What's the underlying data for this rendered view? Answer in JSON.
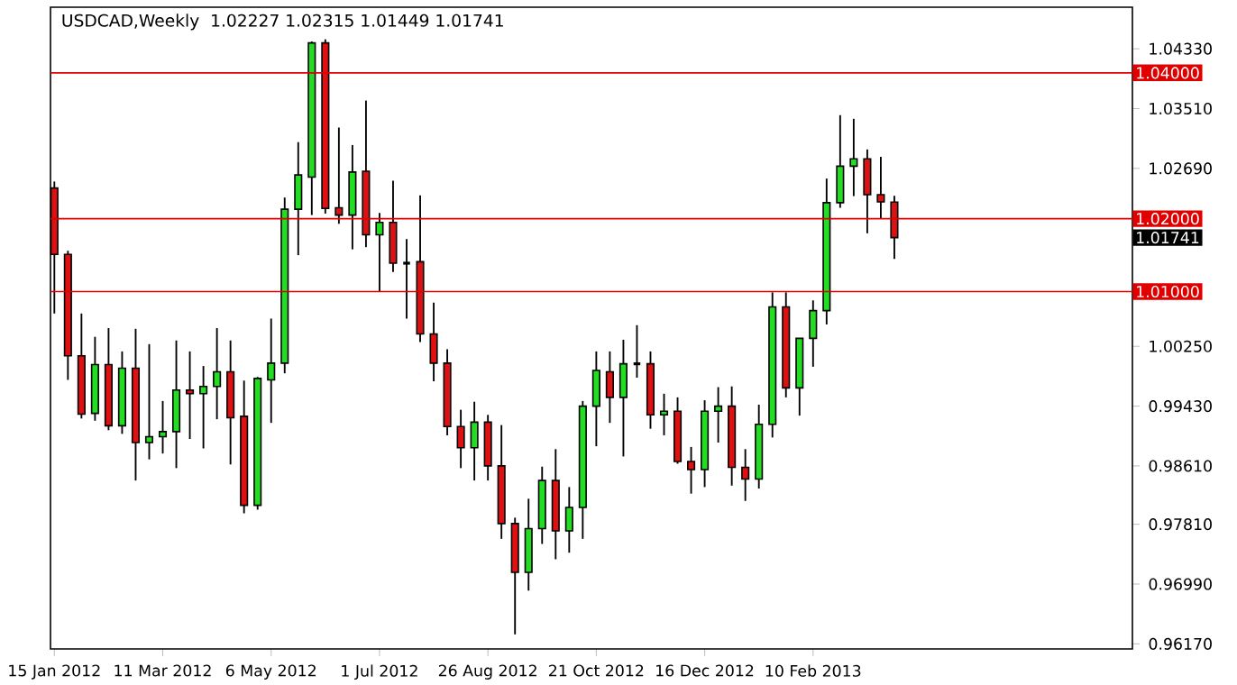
{
  "chart_data": {
    "type": "candlestick",
    "title": "USDCAD,Weekly",
    "subtitle": "1.02227 1.02315 1.01449 1.01741",
    "x": [
      "2012-01-15",
      "2012-01-22",
      "2012-01-29",
      "2012-02-05",
      "2012-02-12",
      "2012-02-19",
      "2012-02-26",
      "2012-03-04",
      "2012-03-11",
      "2012-03-18",
      "2012-03-25",
      "2012-04-01",
      "2012-04-08",
      "2012-04-15",
      "2012-04-22",
      "2012-04-29",
      "2012-05-06",
      "2012-05-13",
      "2012-05-20",
      "2012-05-27",
      "2012-06-03",
      "2012-06-10",
      "2012-06-17",
      "2012-06-24",
      "2012-07-01",
      "2012-07-08",
      "2012-07-15",
      "2012-07-22",
      "2012-07-29",
      "2012-08-05",
      "2012-08-12",
      "2012-08-19",
      "2012-08-26",
      "2012-09-02",
      "2012-09-09",
      "2012-09-16",
      "2012-09-23",
      "2012-09-30",
      "2012-10-07",
      "2012-10-14",
      "2012-10-21",
      "2012-10-28",
      "2012-11-04",
      "2012-11-11",
      "2012-11-18",
      "2012-11-25",
      "2012-12-02",
      "2012-12-09",
      "2012-12-16",
      "2012-12-23",
      "2012-12-30",
      "2013-01-06",
      "2013-01-13",
      "2013-01-20",
      "2013-01-27",
      "2013-02-03",
      "2013-02-10",
      "2013-02-17",
      "2013-02-24",
      "2013-03-03",
      "2013-03-10",
      "2013-03-17",
      "2013-03-24"
    ],
    "ohlc": [
      [
        1.0242,
        1.0251,
        1.007,
        1.0151
      ],
      [
        1.0151,
        1.0156,
        0.9979,
        1.0012
      ],
      [
        1.0012,
        1.007,
        0.9926,
        0.9932
      ],
      [
        0.9933,
        1.0038,
        0.9923,
        1.0
      ],
      [
        1.0,
        1.005,
        0.991,
        0.9916
      ],
      [
        0.9916,
        1.0018,
        0.9905,
        0.9995
      ],
      [
        0.9995,
        1.0049,
        0.9841,
        0.9893
      ],
      [
        0.9893,
        1.0028,
        0.987,
        0.9901
      ],
      [
        0.9901,
        0.995,
        0.9878,
        0.9908
      ],
      [
        0.9908,
        1.0033,
        0.9858,
        0.9965
      ],
      [
        0.9965,
        1.0018,
        0.9898,
        0.996
      ],
      [
        0.996,
        0.9998,
        0.9885,
        0.997
      ],
      [
        0.997,
        1.005,
        0.9925,
        0.999
      ],
      [
        0.999,
        1.0033,
        0.9863,
        0.9927
      ],
      [
        0.9929,
        0.9978,
        0.9796,
        0.9807
      ],
      [
        0.9807,
        0.9983,
        0.9801,
        0.9981
      ],
      [
        0.9979,
        1.0063,
        0.992,
        1.0002
      ],
      [
        1.0002,
        1.0229,
        0.9988,
        1.0213
      ],
      [
        1.0213,
        1.0305,
        1.015,
        1.026
      ],
      [
        1.0257,
        1.0443,
        1.0205,
        1.0441
      ],
      [
        1.0441,
        1.0446,
        1.0207,
        1.0214
      ],
      [
        1.0215,
        1.0325,
        1.0193,
        1.0205
      ],
      [
        1.0205,
        1.0301,
        1.0158,
        1.0264
      ],
      [
        1.0265,
        1.0362,
        1.0161,
        1.0178
      ],
      [
        1.0178,
        1.0208,
        1.01,
        1.0195
      ],
      [
        1.0195,
        1.0252,
        1.0127,
        1.0139
      ],
      [
        1.0139,
        1.0172,
        1.0063,
        1.0139
      ],
      [
        1.0141,
        1.0232,
        1.0031,
        1.0042
      ],
      [
        1.0042,
        1.0085,
        0.9977,
        1.0002
      ],
      [
        1.0002,
        1.0021,
        0.9903,
        0.9915
      ],
      [
        0.9915,
        0.9938,
        0.9858,
        0.9886
      ],
      [
        0.9886,
        0.9949,
        0.9841,
        0.9921
      ],
      [
        0.9921,
        0.9931,
        0.9841,
        0.9861
      ],
      [
        0.9861,
        0.9917,
        0.9761,
        0.9782
      ],
      [
        0.9782,
        0.979,
        0.963,
        0.9715
      ],
      [
        0.9715,
        0.9816,
        0.969,
        0.9775
      ],
      [
        0.9775,
        0.986,
        0.9754,
        0.9841
      ],
      [
        0.9841,
        0.9884,
        0.9733,
        0.9772
      ],
      [
        0.9772,
        0.9832,
        0.9742,
        0.9804
      ],
      [
        0.9804,
        0.995,
        0.9761,
        0.9943
      ],
      [
        0.9943,
        1.0018,
        0.9888,
        0.9992
      ],
      [
        0.999,
        1.0018,
        0.992,
        0.9955
      ],
      [
        0.9955,
        1.0034,
        0.9874,
        1.0001
      ],
      [
        1.0001,
        1.0054,
        0.9982,
        1.0001
      ],
      [
        1.0001,
        1.0018,
        0.9912,
        0.9931
      ],
      [
        0.9931,
        0.996,
        0.9903,
        0.9936
      ],
      [
        0.9936,
        0.9955,
        0.9864,
        0.9867
      ],
      [
        0.9867,
        0.9887,
        0.9823,
        0.9856
      ],
      [
        0.9856,
        0.9951,
        0.9832,
        0.9936
      ],
      [
        0.9936,
        0.9969,
        0.9893,
        0.9943
      ],
      [
        0.9943,
        0.997,
        0.9834,
        0.9859
      ],
      [
        0.9859,
        0.9884,
        0.9813,
        0.9843
      ],
      [
        0.9843,
        0.9945,
        0.983,
        0.9918
      ],
      [
        0.9918,
        1.0099,
        0.99,
        1.0079
      ],
      [
        1.0079,
        1.0099,
        0.9955,
        0.9968
      ],
      [
        0.9968,
        1.0036,
        0.993,
        1.0036
      ],
      [
        1.0036,
        1.0088,
        0.9997,
        1.0074
      ],
      [
        1.0074,
        1.0255,
        1.0055,
        1.0222
      ],
      [
        1.0222,
        1.0342,
        1.0215,
        1.0272
      ],
      [
        1.0272,
        1.0337,
        1.0231,
        1.0282
      ],
      [
        1.0282,
        1.0295,
        1.018,
        1.0233
      ],
      [
        1.0233,
        1.0285,
        1.02,
        1.0223
      ],
      [
        1.02227,
        1.02315,
        1.01449,
        1.01741
      ]
    ],
    "colors": [
      "#dd1111",
      "#dd1111",
      "#dd1111",
      "#22dd22",
      "#dd1111",
      "#22dd22",
      "#dd1111",
      "#22dd22",
      "#22dd22",
      "#22dd22",
      "#dd1111",
      "#22dd22",
      "#22dd22",
      "#dd1111",
      "#dd1111",
      "#22dd22",
      "#22dd22",
      "#22dd22",
      "#22dd22",
      "#22dd22",
      "#dd1111",
      "#dd1111",
      "#22dd22",
      "#dd1111",
      "#22dd22",
      "#dd1111",
      "#000000",
      "#dd1111",
      "#dd1111",
      "#dd1111",
      "#dd1111",
      "#22dd22",
      "#dd1111",
      "#dd1111",
      "#dd1111",
      "#22dd22",
      "#22dd22",
      "#dd1111",
      "#22dd22",
      "#22dd22",
      "#22dd22",
      "#dd1111",
      "#22dd22",
      "#000000",
      "#dd1111",
      "#22dd22",
      "#dd1111",
      "#dd1111",
      "#22dd22",
      "#22dd22",
      "#dd1111",
      "#dd1111",
      "#22dd22",
      "#22dd22",
      "#dd1111",
      "#22dd22",
      "#22dd22",
      "#22dd22",
      "#22dd22",
      "#22dd22",
      "#dd1111",
      "#dd1111",
      "#dd1111"
    ],
    "xlim": [
      "2012-01-13",
      "2013-07-25"
    ],
    "xticks": [
      {
        "value": "2012-01-15",
        "label": "15 Jan 2012"
      },
      {
        "value": "2012-03-11",
        "label": "11 Mar 2012"
      },
      {
        "value": "2012-05-06",
        "label": "6 May 2012"
      },
      {
        "value": "2012-07-01",
        "label": "1 Jul 2012"
      },
      {
        "value": "2012-08-26",
        "label": "26 Aug 2012"
      },
      {
        "value": "2012-10-21",
        "label": "21 Oct 2012"
      },
      {
        "value": "2012-12-16",
        "label": "16 Dec 2012"
      },
      {
        "value": "2013-02-10",
        "label": "10 Feb 2013"
      }
    ],
    "ylim": [
      0.961,
      1.049
    ],
    "yticks": [
      {
        "value": 0.9617,
        "label": "0.96170"
      },
      {
        "value": 0.9699,
        "label": "0.96990"
      },
      {
        "value": 0.9781,
        "label": "0.97810"
      },
      {
        "value": 0.9861,
        "label": "0.98610"
      },
      {
        "value": 0.9943,
        "label": "0.99430"
      },
      {
        "value": 1.0025,
        "label": "1.00250"
      },
      {
        "value": 1.0269,
        "label": "1.02690"
      },
      {
        "value": 1.0351,
        "label": "1.03510"
      },
      {
        "value": 1.0433,
        "label": "1.04330"
      }
    ],
    "ref_lines": [
      {
        "axis": "y",
        "value": 1.04,
        "label": "1.04000",
        "color": "#e00000"
      },
      {
        "axis": "y",
        "value": 1.02,
        "label": "1.02000",
        "color": "#e00000"
      },
      {
        "axis": "y",
        "value": 1.01,
        "label": "1.01000",
        "color": "#e00000"
      }
    ],
    "annotations": [
      "1.01741"
    ]
  }
}
